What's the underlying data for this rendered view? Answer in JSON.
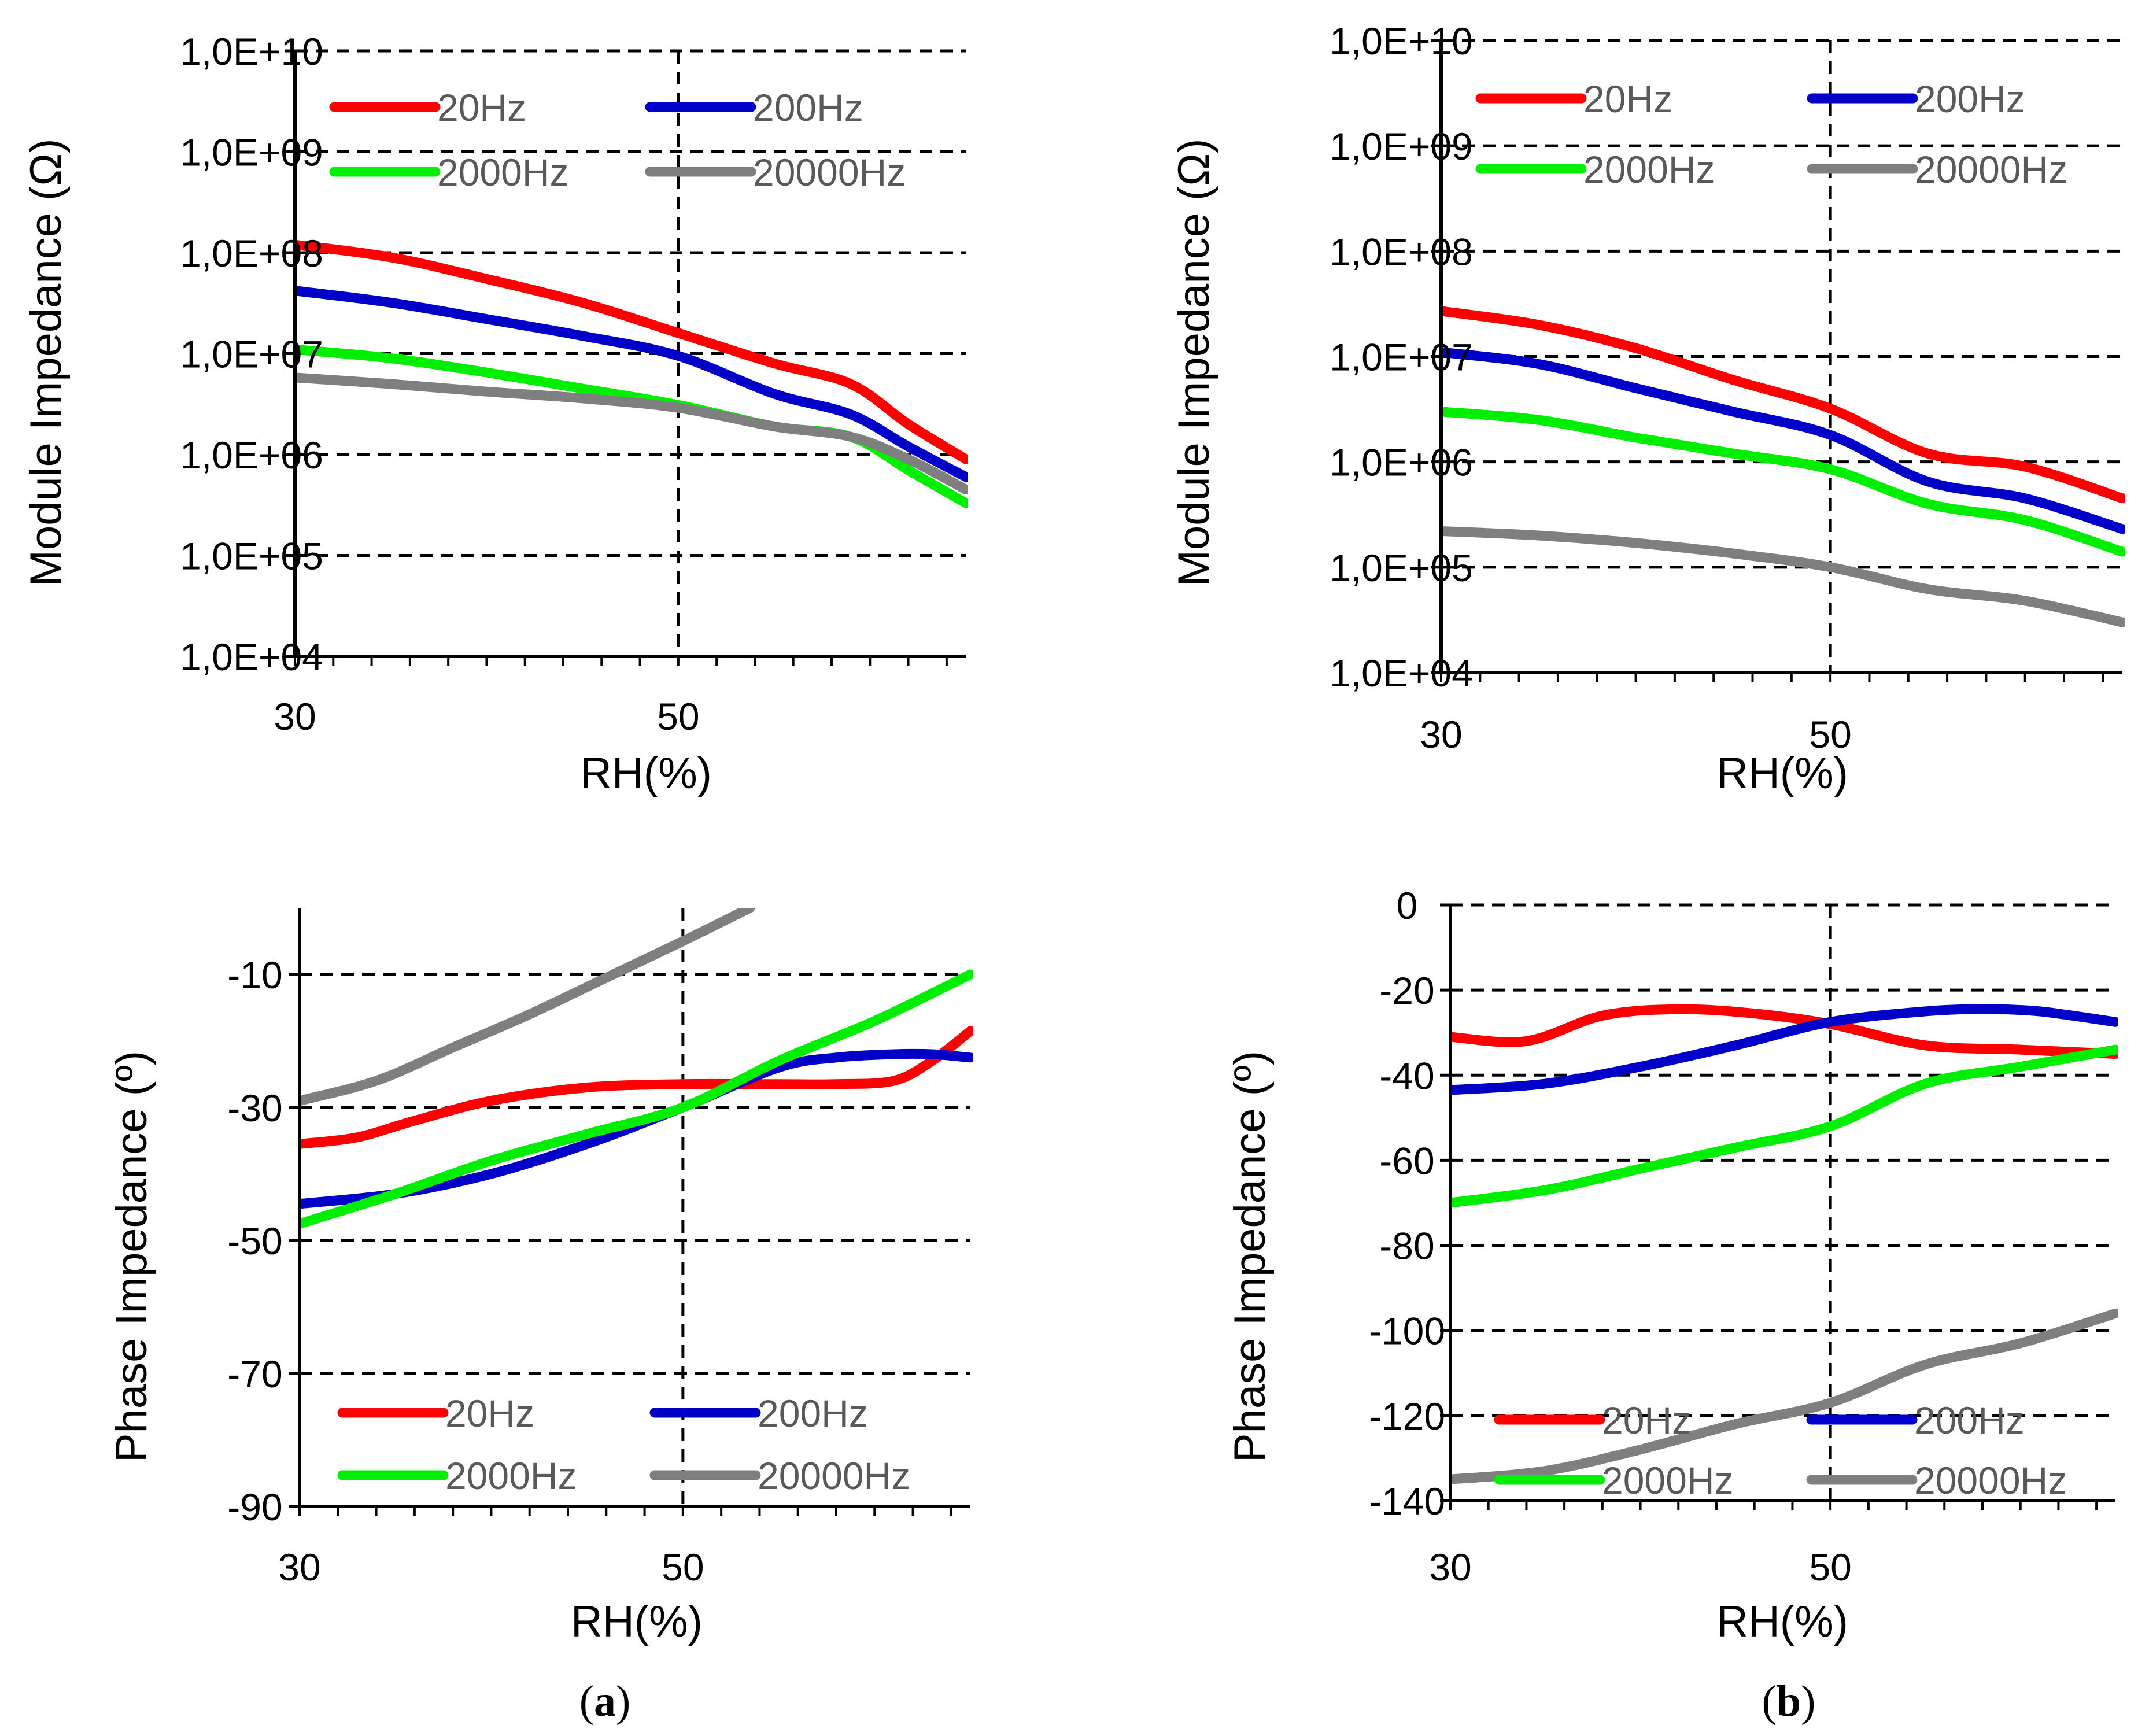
{
  "colors": {
    "20Hz": "#ff0000",
    "200Hz": "#0000c8",
    "2000Hz": "#00ee00",
    "20000Hz": "#7f7f7f",
    "axis": "#000000",
    "legend_text": "#595959"
  },
  "captions": {
    "a_letter": "a",
    "b_letter": "b"
  },
  "chart_data": [
    {
      "id": "a-module",
      "type": "line",
      "scale_y": "log",
      "title": "",
      "xlabel": "RH(%)",
      "ylabel": "Module Impedance (Ω)",
      "xlim": [
        30,
        65
      ],
      "x_ticks": [
        30,
        50
      ],
      "x_tick_labels": [
        "30",
        "50"
      ],
      "ylim": [
        10000,
        10000000000
      ],
      "y_ticks": [
        10000,
        100000,
        1000000,
        10000000,
        100000000,
        1000000000,
        10000000000
      ],
      "y_tick_labels": [
        "1,0E+04",
        "1,0E+05",
        "1,0E+06",
        "1,0E+07",
        "1,0E+08",
        "1,0E+09",
        "1,0E+10"
      ],
      "grid": "dashed",
      "legend_position": "top",
      "series": [
        {
          "name": "20Hz",
          "color": "#ff0000",
          "x": [
            30,
            35,
            40,
            45,
            50,
            55,
            59,
            62,
            65
          ],
          "values": [
            120000000,
            90000000,
            55000000,
            32000000,
            16000000,
            8000000,
            5000000,
            2000000,
            900000
          ]
        },
        {
          "name": "200Hz",
          "color": "#0000c8",
          "x": [
            30,
            35,
            40,
            45,
            50,
            55,
            59,
            62,
            65
          ],
          "values": [
            42000000,
            32000000,
            22000000,
            15000000,
            9500000,
            4000000,
            2500000,
            1200000,
            600000
          ]
        },
        {
          "name": "2000Hz",
          "color": "#00ee00",
          "x": [
            30,
            35,
            40,
            45,
            50,
            55,
            59,
            62,
            65
          ],
          "values": [
            11000000,
            9000000,
            6500000,
            4500000,
            3100000,
            1900000,
            1500000,
            700000,
            330000
          ]
        },
        {
          "name": "20000Hz",
          "color": "#7f7f7f",
          "x": [
            30,
            35,
            40,
            45,
            50,
            55,
            59,
            62,
            65
          ],
          "values": [
            5800000,
            5000000,
            4200000,
            3600000,
            2900000,
            1900000,
            1500000,
            900000,
            450000
          ]
        }
      ]
    },
    {
      "id": "b-module",
      "type": "line",
      "scale_y": "log",
      "title": "",
      "xlabel": "RH(%)",
      "ylabel": "Module Impedance (Ω)",
      "xlim": [
        30,
        65
      ],
      "x_ticks": [
        30,
        50
      ],
      "x_tick_labels": [
        "30",
        "50"
      ],
      "ylim": [
        10000,
        10000000000
      ],
      "y_ticks": [
        10000,
        100000,
        1000000,
        10000000,
        100000000,
        1000000000,
        10000000000
      ],
      "y_tick_labels": [
        "1,0E+04",
        "1,0E+05",
        "1,0E+06",
        "1,0E+07",
        "1,0E+08",
        "1,0E+09",
        "1,0E+10"
      ],
      "grid": "dashed",
      "legend_position": "top",
      "series": [
        {
          "name": "20Hz",
          "color": "#ff0000",
          "x": [
            30,
            35,
            40,
            45,
            50,
            55,
            60,
            65
          ],
          "values": [
            27000000,
            20000000,
            12000000,
            6000000,
            3200000,
            1200000,
            900000,
            450000
          ]
        },
        {
          "name": "200Hz",
          "color": "#0000c8",
          "x": [
            30,
            35,
            40,
            45,
            50,
            55,
            60,
            65
          ],
          "values": [
            11000000,
            8500000,
            5000000,
            3000000,
            1800000,
            650000,
            450000,
            230000
          ]
        },
        {
          "name": "2000Hz",
          "color": "#00ee00",
          "x": [
            30,
            35,
            40,
            45,
            50,
            55,
            60,
            65
          ],
          "values": [
            3000000,
            2500000,
            1700000,
            1200000,
            850000,
            400000,
            280000,
            140000
          ]
        },
        {
          "name": "20000Hz",
          "color": "#7f7f7f",
          "x": [
            30,
            35,
            40,
            45,
            50,
            55,
            60,
            65
          ],
          "values": [
            220000,
            200000,
            170000,
            135000,
            100000,
            62000,
            48000,
            30000
          ]
        }
      ]
    },
    {
      "id": "a-phase",
      "type": "line",
      "scale_y": "linear",
      "title": "",
      "xlabel": "RH(%)",
      "ylabel": "Phase Impedance (º)",
      "xlim": [
        30,
        65
      ],
      "x_ticks": [
        30,
        50
      ],
      "x_tick_labels": [
        "30",
        "50"
      ],
      "ylim": [
        -90,
        0
      ],
      "y_ticks": [
        -90,
        -70,
        -50,
        -30,
        -10
      ],
      "y_tick_labels": [
        "-90",
        "-70",
        "-50",
        "-30",
        "-10"
      ],
      "grid": "dashed",
      "legend_position": "bottom",
      "series": [
        {
          "name": "20Hz",
          "color": "#ff0000",
          "x": [
            30,
            33,
            36,
            40,
            45,
            50,
            55,
            58,
            61,
            63,
            65
          ],
          "values": [
            -35.5,
            -34.5,
            -32,
            -29,
            -27,
            -26.5,
            -26.5,
            -26.5,
            -26,
            -23,
            -18.5
          ]
        },
        {
          "name": "200Hz",
          "color": "#0000c8",
          "x": [
            30,
            35,
            40,
            45,
            50,
            55,
            58,
            61,
            63,
            65
          ],
          "values": [
            -44.5,
            -43,
            -40,
            -35.5,
            -30,
            -24,
            -22.5,
            -22,
            -22,
            -22.5
          ]
        },
        {
          "name": "2000Hz",
          "color": "#00ee00",
          "x": [
            30,
            35,
            40,
            45,
            50,
            55,
            60,
            65
          ],
          "values": [
            -47.5,
            -43,
            -38,
            -34,
            -30,
            -23,
            -17,
            -10
          ]
        },
        {
          "name": "20000Hz",
          "color": "#7f7f7f",
          "x": [
            30,
            34,
            38,
            42,
            46,
            50,
            53.5
          ],
          "values": [
            -29,
            -26,
            -21,
            -16,
            -10.5,
            -5,
            0
          ]
        }
      ]
    },
    {
      "id": "b-phase",
      "type": "line",
      "scale_y": "linear",
      "title": "",
      "xlabel": "RH(%)",
      "ylabel": "Phase Impedance (º)",
      "xlim": [
        30,
        65
      ],
      "x_ticks": [
        30,
        50
      ],
      "x_tick_labels": [
        "30",
        "50"
      ],
      "ylim": [
        -140,
        0
      ],
      "y_ticks": [
        -140,
        -120,
        -100,
        -80,
        -60,
        -40,
        -20,
        0
      ],
      "y_tick_labels": [
        "-140",
        "-120",
        "-100",
        "-80",
        "-60",
        "-40",
        "-20",
        "0"
      ],
      "grid": "dashed",
      "legend_position": "bottom",
      "series": [
        {
          "name": "20Hz",
          "color": "#ff0000",
          "x": [
            30,
            34,
            38,
            42,
            46,
            50,
            55,
            60,
            65
          ],
          "values": [
            -31,
            -32,
            -26,
            -24.5,
            -25.5,
            -28,
            -33,
            -34,
            -35
          ]
        },
        {
          "name": "200Hz",
          "color": "#0000c8",
          "x": [
            30,
            35,
            40,
            45,
            50,
            55,
            58,
            61,
            65
          ],
          "values": [
            -43.5,
            -42,
            -38,
            -33,
            -27.5,
            -25,
            -24.5,
            -25,
            -27.5
          ]
        },
        {
          "name": "2000Hz",
          "color": "#00ee00",
          "x": [
            30,
            35,
            40,
            45,
            50,
            55,
            60,
            65
          ],
          "values": [
            -70,
            -67,
            -62,
            -57,
            -52,
            -42,
            -38,
            -34
          ]
        },
        {
          "name": "20000Hz",
          "color": "#7f7f7f",
          "x": [
            30,
            35,
            40,
            45,
            50,
            55,
            60,
            65
          ],
          "values": [
            -135,
            -133,
            -128,
            -122,
            -117,
            -108,
            -103,
            -96
          ]
        }
      ]
    }
  ]
}
